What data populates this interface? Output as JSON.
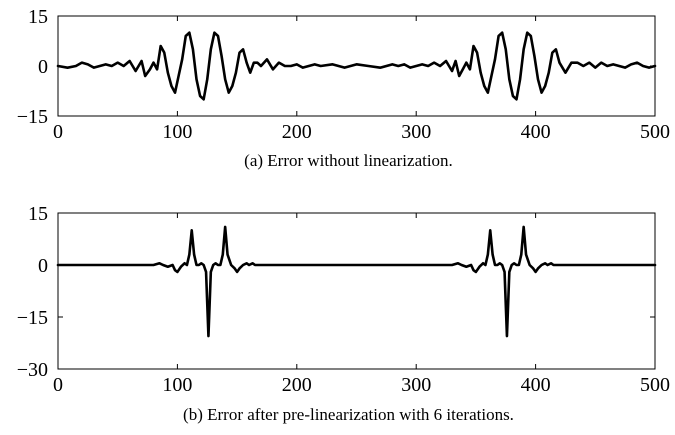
{
  "chart_data": [
    {
      "type": "line",
      "caption": "(a) Error without linearization.",
      "xlabel": "",
      "ylabel": "",
      "xlim": [
        0,
        500
      ],
      "ylim": [
        -15,
        15
      ],
      "xticks": [
        0,
        100,
        200,
        300,
        400,
        500
      ],
      "xtick_labels": [
        "0",
        "100",
        "200",
        "300",
        "400",
        "500"
      ],
      "yticks": [
        15,
        0,
        -15
      ],
      "ytick_labels": [
        "15",
        "0",
        "−15"
      ],
      "grid": false,
      "legend": "none",
      "series": [
        {
          "x": [
            0,
            8,
            15,
            20,
            25,
            30,
            35,
            40,
            45,
            50,
            55,
            60,
            65,
            70,
            73,
            77,
            80,
            83,
            86,
            89,
            92,
            95,
            98,
            101,
            104,
            107,
            110,
            113,
            116,
            119,
            122,
            125,
            128,
            131,
            134,
            137,
            140,
            143,
            146,
            149,
            152,
            155,
            158,
            161,
            164,
            167,
            170,
            175,
            180,
            185,
            190,
            195,
            200,
            205,
            210,
            215,
            220,
            230,
            240,
            250,
            260,
            270,
            280,
            285,
            290,
            295,
            300,
            305,
            310,
            315,
            320,
            325,
            330,
            333,
            336,
            339,
            342,
            345,
            348,
            351,
            354,
            357,
            360,
            363,
            366,
            369,
            372,
            375,
            378,
            381,
            384,
            387,
            390,
            393,
            396,
            399,
            402,
            405,
            408,
            411,
            414,
            417,
            420,
            425,
            430,
            435,
            440,
            445,
            450,
            455,
            460,
            465,
            470,
            475,
            480,
            485,
            490,
            495,
            500
          ],
          "values": [
            0,
            -0.5,
            0,
            1,
            0.5,
            -0.5,
            0,
            0.5,
            0,
            1,
            0,
            1.5,
            -1.5,
            1.5,
            -3,
            -1,
            1,
            -1,
            6,
            4,
            -2,
            -6,
            -8,
            -3,
            2,
            9,
            10,
            5,
            -4,
            -9,
            -10,
            -4,
            5,
            10,
            9,
            3,
            -4,
            -8,
            -6,
            -2,
            4,
            5,
            1,
            -2,
            1,
            1,
            0,
            2,
            -1,
            1,
            0,
            0,
            0.5,
            -0.5,
            0,
            0.5,
            0,
            0.5,
            -0.5,
            0.5,
            0,
            -0.5,
            0.5,
            0,
            0.5,
            -0.5,
            0,
            0.5,
            0,
            1,
            0,
            1.5,
            -1.5,
            1.5,
            -3,
            -1,
            1,
            -1,
            6,
            4,
            -2,
            -6,
            -8,
            -3,
            2,
            9,
            10,
            5,
            -4,
            -9,
            -10,
            -4,
            5,
            10,
            9,
            3,
            -4,
            -8,
            -6,
            -2,
            4,
            5,
            1,
            -2,
            1,
            1,
            0,
            1,
            -0.5,
            1,
            0,
            0.5,
            0,
            -0.5,
            0.5,
            1,
            0,
            -0.5,
            0
          ]
        }
      ]
    },
    {
      "type": "line",
      "caption": "(b) Error after pre-linearization with 6 iterations.",
      "xlabel": "",
      "ylabel": "",
      "xlim": [
        0,
        500
      ],
      "ylim": [
        -30,
        15
      ],
      "xticks": [
        0,
        100,
        200,
        300,
        400,
        500
      ],
      "xtick_labels": [
        "0",
        "100",
        "200",
        "300",
        "400",
        "500"
      ],
      "yticks": [
        15,
        0,
        -15,
        -30
      ],
      "ytick_labels": [
        "15",
        "0",
        "−15",
        "−30"
      ],
      "grid": false,
      "legend": "none",
      "series": [
        {
          "x": [
            0,
            80,
            85,
            88,
            92,
            96,
            98,
            100,
            103,
            106,
            108,
            110,
            112,
            114,
            116,
            118,
            120,
            122,
            124,
            126,
            128,
            130,
            132,
            134,
            136,
            138,
            140,
            142,
            145,
            148,
            150,
            152,
            155,
            158,
            160,
            163,
            165,
            170,
            175,
            180,
            250,
            330,
            335,
            338,
            342,
            346,
            348,
            350,
            353,
            356,
            358,
            360,
            362,
            364,
            366,
            368,
            370,
            372,
            374,
            376,
            378,
            380,
            382,
            384,
            386,
            388,
            390,
            392,
            395,
            398,
            400,
            402,
            405,
            408,
            410,
            413,
            415,
            420,
            425,
            430,
            500
          ],
          "values": [
            0,
            0,
            0.5,
            0,
            -0.5,
            0,
            -1.5,
            -2,
            -0.5,
            0.5,
            0,
            3,
            10,
            3,
            0,
            0,
            0.5,
            0,
            -2,
            -20.5,
            -2,
            0,
            0.5,
            0,
            0,
            3,
            11,
            3,
            0,
            -1,
            -2,
            -1,
            0,
            0.5,
            0,
            0.5,
            0,
            0,
            0,
            0,
            0,
            0,
            0.5,
            0,
            -0.5,
            0,
            -1.5,
            -2,
            -0.5,
            0.5,
            0,
            3,
            10,
            3,
            0,
            0,
            0.5,
            0,
            -2,
            -20.5,
            -2,
            0,
            0.5,
            0,
            0,
            3,
            11,
            3,
            0,
            -1,
            -2,
            -1,
            0,
            0.5,
            0,
            0.5,
            0,
            0,
            0,
            0,
            0
          ]
        }
      ]
    }
  ]
}
